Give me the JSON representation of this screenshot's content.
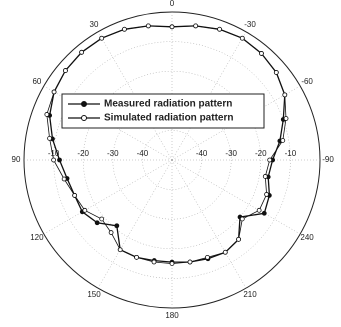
{
  "chart_data": {
    "type": "polar",
    "theta": [
      0,
      10,
      20,
      30,
      40,
      50,
      60,
      70,
      80,
      90,
      100,
      110,
      120,
      130,
      140,
      150,
      160,
      170,
      180,
      190,
      200,
      210,
      220,
      230,
      240,
      250,
      260,
      270,
      280,
      290,
      300,
      310,
      320,
      330,
      340,
      350
    ],
    "series": [
      {
        "name": "Measured radiation pattern",
        "color": "#111111",
        "marker": "filled",
        "values": [
          -5,
          -4,
          -3,
          -2.5,
          -2.5,
          -3,
          -4,
          -6,
          -9,
          -12,
          -14,
          -15,
          -15,
          -17,
          -21,
          -15,
          -15,
          -15.5,
          -15.5,
          -15,
          -14.5,
          -14,
          -15,
          -20,
          -14,
          -15,
          -17,
          -16,
          -13,
          -10,
          -6,
          -4,
          -3,
          -2.5,
          -3,
          -4
        ]
      },
      {
        "name": "Simulated radiation pattern",
        "color": "#111111",
        "marker": "open",
        "values": [
          -5,
          -4,
          -3,
          -2.5,
          -2.5,
          -3,
          -4,
          -5,
          -8,
          -10,
          -13,
          -15,
          -16,
          -19,
          -18,
          -15,
          -15,
          -15,
          -15,
          -15,
          -15,
          -14,
          -15,
          -19,
          -16,
          -16,
          -18,
          -17,
          -12,
          -9,
          -6,
          -4,
          -3,
          -2.5,
          -3,
          -4
        ]
      }
    ],
    "rlim": [
      -50,
      0
    ],
    "rticks": [
      -40,
      -30,
      -20,
      -10
    ],
    "thetaticks": [
      0,
      30,
      60,
      90,
      120,
      150,
      180,
      210,
      240,
      {
        "value": 270,
        "label": "-90"
      },
      {
        "value": 300,
        "label": "-60"
      },
      {
        "value": 330,
        "label": "-30"
      }
    ],
    "grid": true
  }
}
